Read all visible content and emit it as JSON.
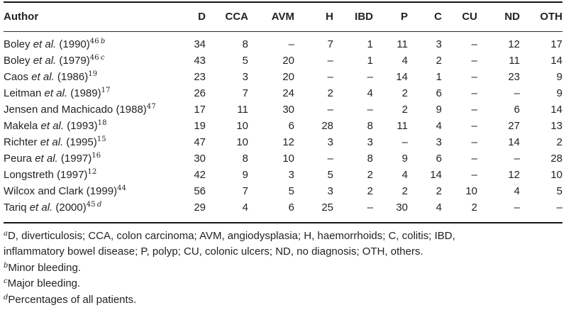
{
  "colors": {
    "text": "#232323",
    "rule": "#161616",
    "background": "#ffffff"
  },
  "table": {
    "columns": [
      "Author",
      "D",
      "CCA",
      "AVM",
      "H",
      "IBD",
      "P",
      "C",
      "CU",
      "ND",
      "OTH"
    ],
    "dash": "–",
    "rows": [
      {
        "author": {
          "pre": "Boley ",
          "etal": "et al. ",
          "year": "(1990)",
          "ref": "46",
          "note": "b"
        },
        "values": [
          "34",
          "8",
          "–",
          "7",
          "1",
          "11",
          "3",
          "–",
          "12",
          "17"
        ]
      },
      {
        "author": {
          "pre": "Boley ",
          "etal": "et al. ",
          "year": "(1979)",
          "ref": "46",
          "note": "c"
        },
        "values": [
          "43",
          "5",
          "20",
          "–",
          "1",
          "4",
          "2",
          "–",
          "11",
          "14"
        ]
      },
      {
        "author": {
          "pre": "Caos ",
          "etal": "et al. ",
          "year": "(1986)",
          "ref": "19",
          "note": ""
        },
        "values": [
          "23",
          "3",
          "20",
          "–",
          "–",
          "14",
          "1",
          "–",
          "23",
          "9"
        ]
      },
      {
        "author": {
          "pre": "Leitman ",
          "etal": "et al. ",
          "year": "(1989)",
          "ref": "17",
          "note": ""
        },
        "values": [
          "26",
          "7",
          "24",
          "2",
          "4",
          "2",
          "6",
          "–",
          "–",
          "9"
        ]
      },
      {
        "author": {
          "pre": "Jensen and Machicado ",
          "etal": "",
          "year": "(1988)",
          "ref": "47",
          "note": ""
        },
        "values": [
          "17",
          "11",
          "30",
          "–",
          "–",
          "2",
          "9",
          "–",
          "6",
          "14"
        ]
      },
      {
        "author": {
          "pre": "Makela ",
          "etal": "et al. ",
          "year": "(1993)",
          "ref": "18",
          "note": ""
        },
        "values": [
          "19",
          "10",
          "6",
          "28",
          "8",
          "11",
          "4",
          "–",
          "27",
          "13"
        ]
      },
      {
        "author": {
          "pre": "Richter ",
          "etal": "et al. ",
          "year": "(1995)",
          "ref": "15",
          "note": ""
        },
        "values": [
          "47",
          "10",
          "12",
          "3",
          "3",
          "–",
          "3",
          "–",
          "14",
          "2"
        ]
      },
      {
        "author": {
          "pre": "Peura ",
          "etal": "et al. ",
          "year": "(1997)",
          "ref": "16",
          "note": ""
        },
        "values": [
          "30",
          "8",
          "10",
          "–",
          "8",
          "9",
          "6",
          "–",
          "–",
          "28"
        ]
      },
      {
        "author": {
          "pre": "Longstreth ",
          "etal": "",
          "year": "(1997)",
          "ref": "12",
          "note": ""
        },
        "values": [
          "42",
          "9",
          "3",
          "5",
          "2",
          "4",
          "14",
          "–",
          "12",
          "10"
        ]
      },
      {
        "author": {
          "pre": "Wilcox and Clark ",
          "etal": "",
          "year": "(1999)",
          "ref": "44",
          "note": ""
        },
        "values": [
          "56",
          "7",
          "5",
          "3",
          "2",
          "2",
          "2",
          "10",
          "4",
          "5"
        ]
      },
      {
        "author": {
          "pre": "Tariq ",
          "etal": "et al. ",
          "year": "(2000)",
          "ref": "45",
          "note": "d"
        },
        "values": [
          "29",
          "4",
          "6",
          "25",
          "–",
          "30",
          "4",
          "2",
          "–",
          "–"
        ]
      }
    ]
  },
  "footnotes": [
    {
      "marker": "a",
      "text": "D, diverticulosis; CCA, colon carcinoma; AVM, angiodysplasia; H, haemorrhoids; C, colitis; IBD, inflammatory bowel disease; P, polyp; CU, colonic ulcers; ND, no diagnosis; OTH, others."
    },
    {
      "marker": "b",
      "text": "Minor bleeding."
    },
    {
      "marker": "c",
      "text": "Major bleeding."
    },
    {
      "marker": "d",
      "text": "Percentages of all patients."
    }
  ]
}
